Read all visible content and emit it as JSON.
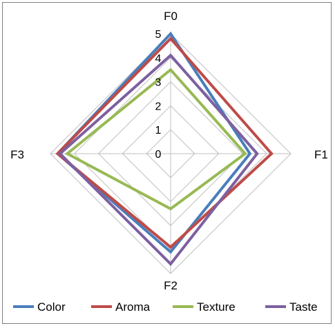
{
  "chart_data": {
    "type": "radar",
    "axes": [
      "F0",
      "F1",
      "F2",
      "F3"
    ],
    "rlim": [
      0,
      5
    ],
    "ticks": [
      "0",
      "1",
      "2",
      "3",
      "4",
      "5"
    ],
    "grid": true,
    "legend_position": "bottom",
    "series": [
      {
        "name": "Color",
        "values": [
          5.0,
          3.3,
          4.1,
          4.7
        ],
        "color": "#4a7ebb"
      },
      {
        "name": "Aroma",
        "values": [
          4.8,
          4.2,
          3.9,
          4.7
        ],
        "color": "#be4b48"
      },
      {
        "name": "Texture",
        "values": [
          3.5,
          3.1,
          2.3,
          4.3
        ],
        "color": "#98b954"
      },
      {
        "name": "Taste",
        "values": [
          4.1,
          3.6,
          4.6,
          4.6
        ],
        "color": "#7d60a0"
      }
    ]
  }
}
